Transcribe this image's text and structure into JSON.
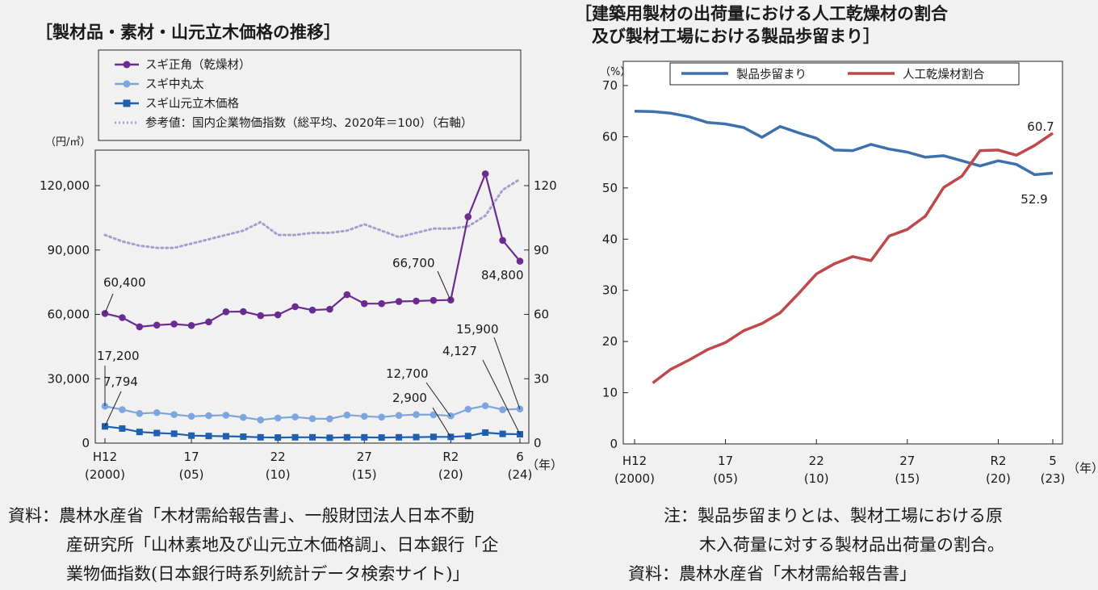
{
  "footnotes": {
    "left_line1": "資料：農林水産省「木材需給報告書」、一般財団法人日本不動",
    "left_line2": "産研究所「山林素地及び山元立木価格調」、日本銀行「企",
    "left_line3": "業物価指数(日本銀行時系列統計データ検索サイト)」",
    "right_line1": "注：製品歩留まりとは、製材工場における原",
    "right_line2": "木入荷量に対する製材品出荷量の割合。",
    "right_line3": "資料：農林水産省「木材需給報告書」"
  },
  "chart_data": [
    {
      "type": "line",
      "title": "［製材品・素材・山元立木価格の推移］",
      "ylabel": "（円/㎥）",
      "xunit": "（年）",
      "ylim": [
        0,
        120000
      ],
      "yticks": [
        "0",
        "30,000",
        "60,000",
        "90,000",
        "120,000"
      ],
      "ylim_right": [
        0,
        120
      ],
      "yticks_right": [
        "0",
        "30",
        "60",
        "90",
        "120"
      ],
      "xlim": [
        2000,
        2024
      ],
      "xticks": [
        {
          "x": 2000,
          "top": "H12",
          "bottom": "(2000)"
        },
        {
          "x": 2005,
          "top": "17",
          "bottom": "(05)"
        },
        {
          "x": 2010,
          "top": "22",
          "bottom": "(10)"
        },
        {
          "x": 2015,
          "top": "27",
          "bottom": "(15)"
        },
        {
          "x": 2020,
          "top": "R2",
          "bottom": "(20)"
        },
        {
          "x": 2024,
          "top": "6",
          "bottom": "(24)"
        }
      ],
      "grid": false,
      "legend_position": "top",
      "x": [
        2000,
        2001,
        2002,
        2003,
        2004,
        2005,
        2006,
        2007,
        2008,
        2009,
        2010,
        2011,
        2012,
        2013,
        2014,
        2015,
        2016,
        2017,
        2018,
        2019,
        2020,
        2021,
        2022,
        2023,
        2024
      ],
      "series": [
        {
          "name": "スギ正角（乾燥材）",
          "axis": "left",
          "color": "#6a2c91",
          "marker": "circle",
          "values": [
            60400,
            58500,
            54200,
            55000,
            55500,
            54800,
            56500,
            61200,
            61300,
            59400,
            59800,
            63600,
            62000,
            62400,
            69200,
            65000,
            65000,
            66000,
            66200,
            66500,
            66700,
            105500,
            125500,
            94500,
            84800
          ]
        },
        {
          "name": "スギ中丸太",
          "axis": "left",
          "color": "#7ea6dc",
          "marker": "circle",
          "values": [
            17200,
            15600,
            13800,
            14200,
            13300,
            12500,
            12800,
            13000,
            12000,
            10800,
            11700,
            12200,
            11400,
            11300,
            13100,
            12500,
            12100,
            12900,
            13300,
            13200,
            12700,
            15800,
            17400,
            15600,
            15900
          ]
        },
        {
          "name": "スギ山元立木価格",
          "axis": "left",
          "color": "#1f5fae",
          "marker": "square",
          "values": [
            7794,
            6800,
            5200,
            4700,
            4400,
            3500,
            3300,
            3200,
            3000,
            2700,
            2600,
            2700,
            2700,
            2500,
            2700,
            2700,
            2600,
            2700,
            2800,
            2900,
            2900,
            3300,
            4900,
            4300,
            4127
          ]
        },
        {
          "name": "参考値：国内企業物価指数（総平均、2020年＝100）（右軸）",
          "axis": "right",
          "color": "#a49fce",
          "style": "dotted",
          "values": [
            97,
            94,
            92,
            91,
            91,
            93,
            95,
            97,
            99,
            103,
            97,
            97,
            98,
            98,
            99,
            102,
            99,
            96,
            98,
            100,
            100,
            101,
            106,
            118,
            123
          ]
        }
      ],
      "annotations": [
        {
          "series": 0,
          "x": 2000,
          "text": "60,400"
        },
        {
          "series": 0,
          "x": 2020,
          "text": "66,700"
        },
        {
          "series": 0,
          "x": 2024,
          "text": "84,800"
        },
        {
          "series": 1,
          "x": 2000,
          "text": "17,200"
        },
        {
          "series": 2,
          "x": 2000,
          "text": "7,794"
        },
        {
          "series": 1,
          "x": 2020,
          "text": "12,700"
        },
        {
          "series": 2,
          "x": 2020,
          "text": "2,900"
        },
        {
          "series": 1,
          "x": 2024,
          "text": "15,900"
        },
        {
          "series": 2,
          "x": 2024,
          "text": "4,127"
        }
      ]
    },
    {
      "type": "line",
      "title_line1": "［建築用製材の出荷量における人工乾燥材の割合",
      "title_line2": "　及び製材工場における製品歩留まり］",
      "ylabel": "（%）",
      "xunit": "（年）",
      "ylim": [
        0,
        70
      ],
      "yticks": [
        "0",
        "10",
        "20",
        "30",
        "40",
        "50",
        "60",
        "70"
      ],
      "xlim": [
        2000,
        2023
      ],
      "xticks": [
        {
          "x": 2000,
          "top": "H12",
          "bottom": "(2000)"
        },
        {
          "x": 2005,
          "top": "17",
          "bottom": "(05)"
        },
        {
          "x": 2010,
          "top": "22",
          "bottom": "(10)"
        },
        {
          "x": 2015,
          "top": "27",
          "bottom": "(15)"
        },
        {
          "x": 2020,
          "top": "R2",
          "bottom": "(20)"
        },
        {
          "x": 2023,
          "top": "5",
          "bottom": "(23)"
        }
      ],
      "grid": false,
      "legend_position": "top",
      "series": [
        {
          "name": "製品歩留まり",
          "color": "#3e70ae",
          "x": [
            2000,
            2001,
            2002,
            2003,
            2004,
            2005,
            2006,
            2007,
            2008,
            2009,
            2010,
            2011,
            2012,
            2013,
            2014,
            2015,
            2016,
            2017,
            2018,
            2019,
            2020,
            2021,
            2022,
            2023
          ],
          "values": [
            65.0,
            64.9,
            64.6,
            63.9,
            62.8,
            62.5,
            61.8,
            59.9,
            62.0,
            60.8,
            59.7,
            57.4,
            57.3,
            58.5,
            57.6,
            57.0,
            56.0,
            56.3,
            55.3,
            54.3,
            55.3,
            54.6,
            52.6,
            52.9
          ]
        },
        {
          "name": "人工乾燥材割合",
          "color": "#c0484a",
          "x": [
            2001,
            2002,
            2003,
            2004,
            2005,
            2006,
            2007,
            2008,
            2009,
            2010,
            2011,
            2012,
            2013,
            2014,
            2015,
            2016,
            2017,
            2018,
            2019,
            2020,
            2021,
            2022,
            2023
          ],
          "values": [
            11.9,
            14.6,
            16.4,
            18.4,
            19.8,
            22.1,
            23.5,
            25.6,
            29.3,
            33.2,
            35.2,
            36.6,
            35.8,
            40.6,
            41.9,
            44.5,
            50.1,
            52.3,
            57.3,
            57.4,
            56.4,
            58.3,
            60.7
          ]
        }
      ],
      "annotations": [
        {
          "series": 1,
          "x": 2023,
          "text": "60.7"
        },
        {
          "series": 0,
          "x": 2023,
          "text": "52.9"
        }
      ]
    }
  ]
}
